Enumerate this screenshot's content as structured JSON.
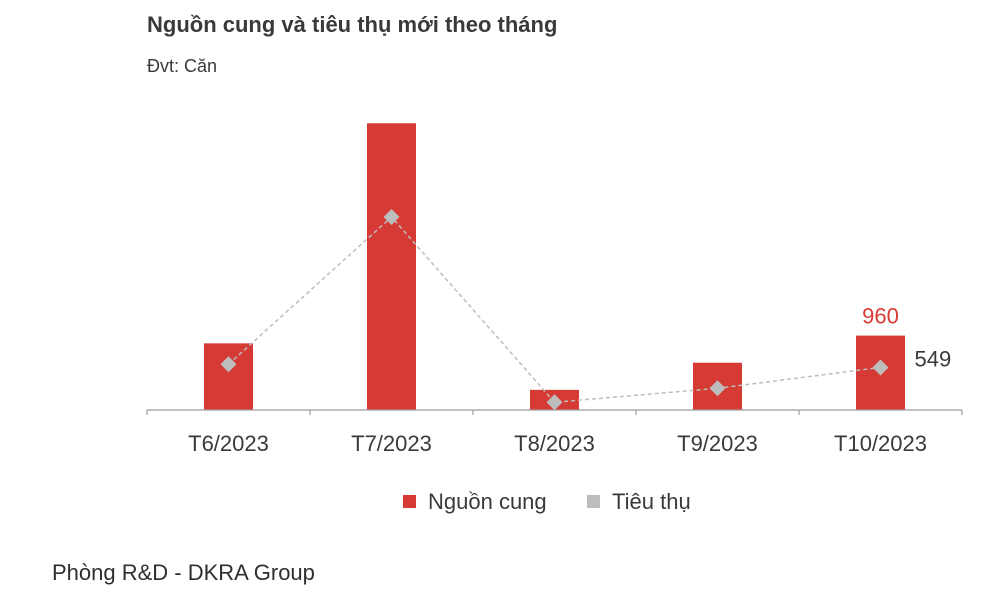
{
  "title": "Nguồn cung và tiêu thụ mới theo tháng",
  "subtitle": "Đvt: Căn",
  "source": "Phòng R&D - DKRA Group",
  "colors": {
    "supply": "#d63a35",
    "sales": "#bdbdbd",
    "axis": "#9e9e9e",
    "text": "#3a3a3a"
  },
  "chart_data": {
    "type": "bar",
    "categories": [
      "T6/2023",
      "T7/2023",
      "T8/2023",
      "T9/2023",
      "T10/2023"
    ],
    "series": [
      {
        "name": "Nguồn cung",
        "type": "bar",
        "values": [
          860,
          3700,
          260,
          610,
          960
        ],
        "data_labels": [
          null,
          null,
          null,
          null,
          "960"
        ]
      },
      {
        "name": "Tiêu thụ",
        "type": "line",
        "marker": "diamond",
        "line_style": "dashed",
        "values": [
          590,
          2490,
          100,
          280,
          549
        ],
        "data_labels": [
          null,
          null,
          null,
          null,
          "549"
        ]
      }
    ],
    "ylim": [
      0,
      4000
    ],
    "grid": false,
    "legend": "bottom-center"
  }
}
